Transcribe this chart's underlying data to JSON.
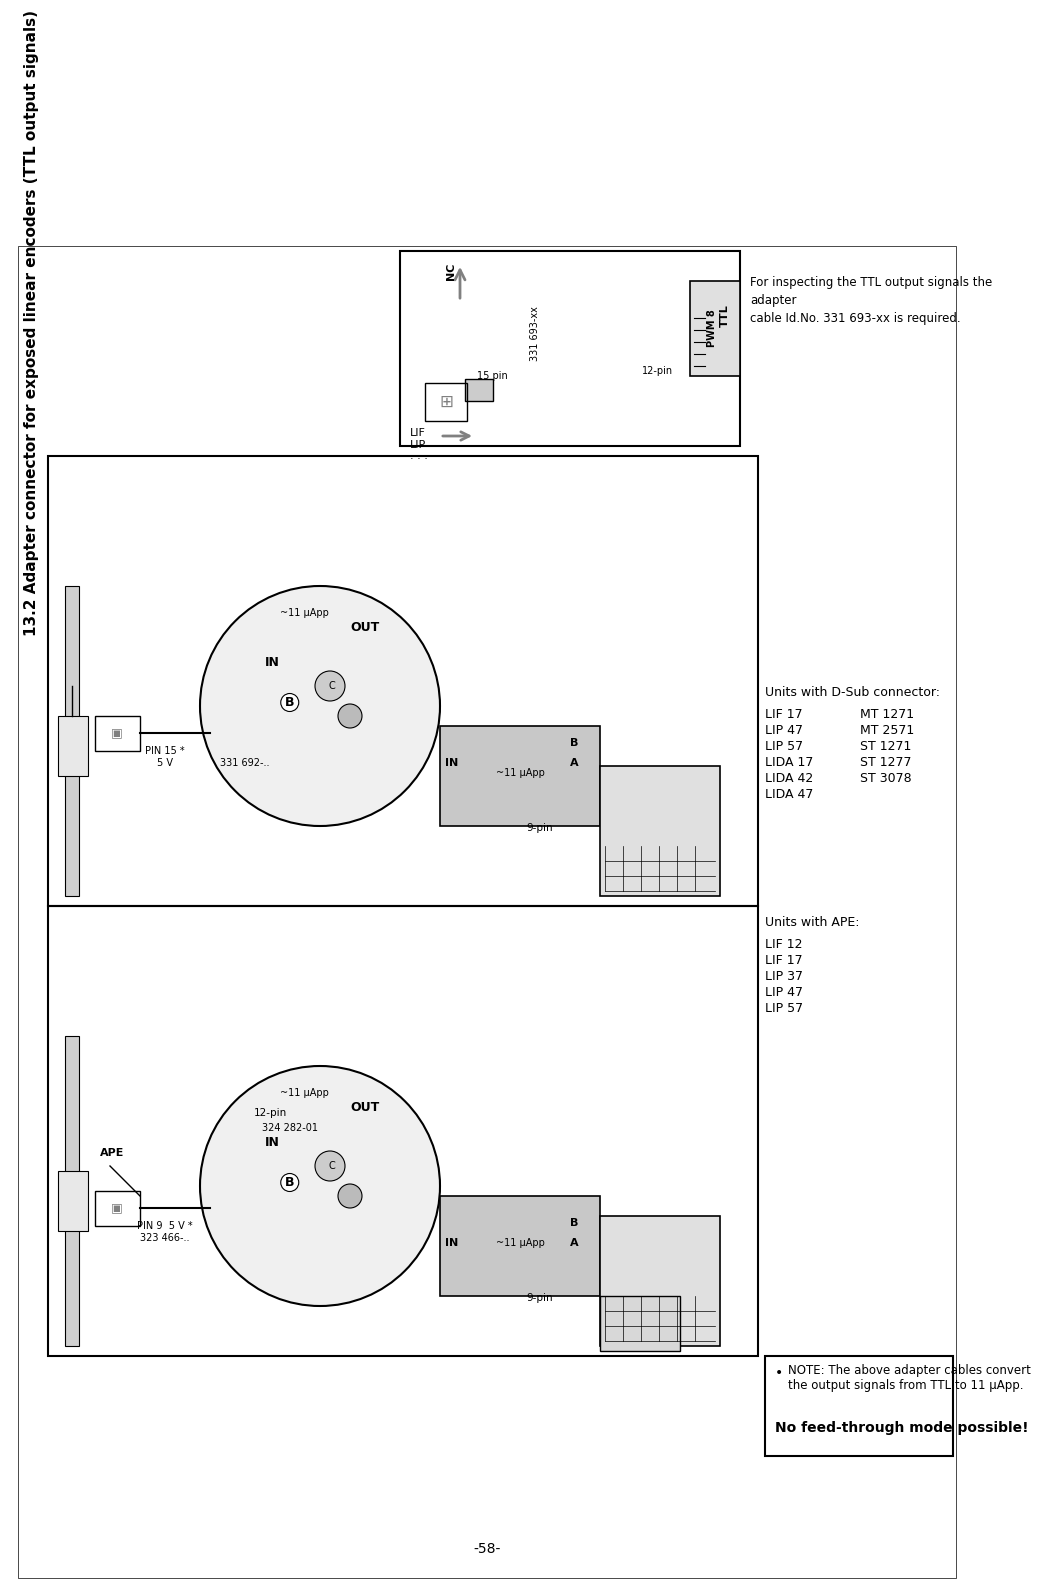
{
  "page_bg": "#ffffff",
  "page_number": "-58-",
  "title_section": "13.2 Adapter connector for exposed linear encoders (TTL output signals)",
  "top_box_note": "For inspecting the TTL output signals the adapter\ncable Id.No. 331 693-xx is required.",
  "units_ape_label": "Units with APE:",
  "units_ape_list": [
    "LIF 12",
    "LIF 17",
    "LIP 37",
    "LIP 47",
    "LIP 57"
  ],
  "units_dsub_label": "Units with D-Sub connector:",
  "units_dsub_list": [
    "MT 1271",
    "MT 2571",
    "ST 1271",
    "ST 1277",
    "ST 3078"
  ],
  "units_dsub_list2": [
    "LIF 17",
    "LIP 47",
    "LIP 57",
    "LIDA 17",
    "LIDA 42",
    "LIDA 47"
  ],
  "note_text": "NOTE: The above adapter cables convert the output signals from TTL to 11 μApp.",
  "no_feedthrough": "No feed-through mode possible!",
  "border_color": "#000000",
  "text_color": "#000000"
}
